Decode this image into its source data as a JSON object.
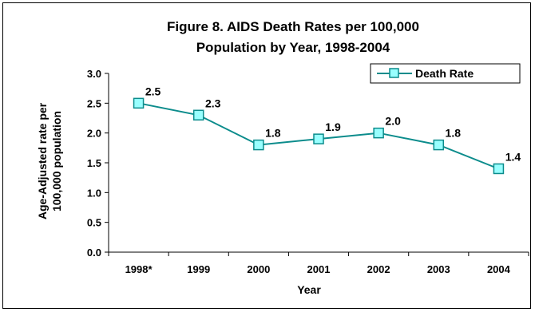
{
  "chart_data": {
    "type": "line",
    "title_line1": "Figure 8. AIDS Death Rates per 100,000",
    "title_line2": "Population by Year, 1998-2004",
    "xlabel": "Year",
    "ylabel_line1": "Age-Adjusted rate per",
    "ylabel_line2": "100,000 population",
    "categories": [
      "1998*",
      "1999",
      "2000",
      "2001",
      "2002",
      "2003",
      "2004"
    ],
    "series": [
      {
        "name": "Death Rate",
        "values": [
          2.5,
          2.3,
          1.8,
          1.9,
          2.0,
          1.8,
          1.4
        ],
        "labels": [
          "2.5",
          "2.3",
          "1.8",
          "1.9",
          "2.0",
          "1.8",
          "1.4"
        ],
        "color": "#0c8c8c",
        "marker_fill": "#99ffff"
      }
    ],
    "ylim": [
      0,
      3
    ],
    "yticks": [
      "0.0",
      "0.5",
      "1.0",
      "1.5",
      "2.0",
      "2.5",
      "3.0"
    ],
    "grid": false,
    "legend": "top-right"
  }
}
